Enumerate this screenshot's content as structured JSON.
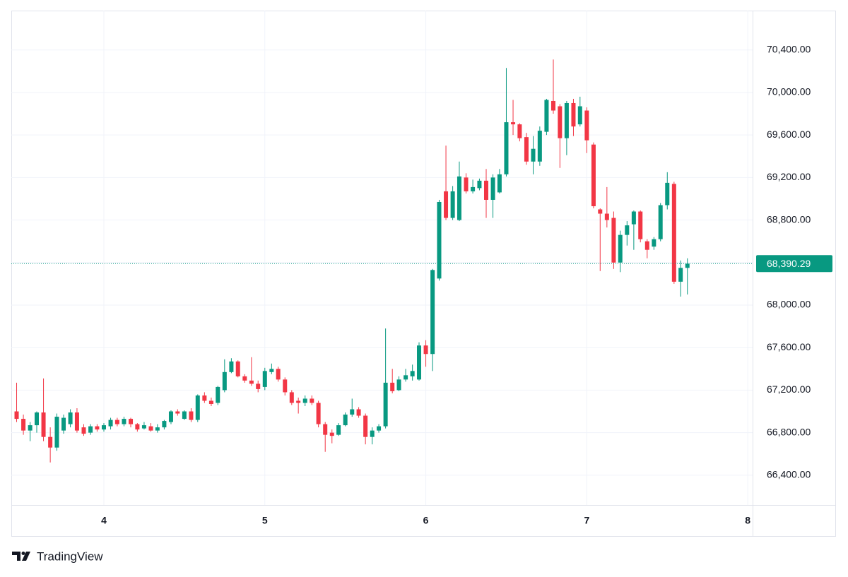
{
  "chart_data": {
    "type": "candlestick",
    "up_color": "#089981",
    "down_color": "#f23645",
    "grid": true,
    "xlim": [
      3.425,
      8.03
    ],
    "xticks": [
      4,
      5,
      6,
      7,
      8
    ],
    "ylim": [
      66120,
      70770
    ],
    "yticks": [
      {
        "value": 66400,
        "label": "66,400.00"
      },
      {
        "value": 66800,
        "label": "66,800.00"
      },
      {
        "value": 67200,
        "label": "67,200.00"
      },
      {
        "value": 67600,
        "label": "67,600.00"
      },
      {
        "value": 68000,
        "label": "68,000.00"
      },
      {
        "value": 68400,
        "label": "68,400.00"
      },
      {
        "value": 68800,
        "label": "68,800.00"
      },
      {
        "value": 69200,
        "label": "69,200.00"
      },
      {
        "value": 69600,
        "label": "69,600.00"
      },
      {
        "value": 70000,
        "label": "70,000.00"
      },
      {
        "value": 70400,
        "label": "70,400.00"
      }
    ],
    "last_price": {
      "value": 68390.29,
      "label": "68,390.29"
    },
    "watermark": "TradingView",
    "x": [
      3.458,
      3.5,
      3.542,
      3.583,
      3.625,
      3.667,
      3.708,
      3.75,
      3.792,
      3.833,
      3.875,
      3.917,
      3.958,
      4,
      4.042,
      4.083,
      4.125,
      4.167,
      4.208,
      4.25,
      4.292,
      4.333,
      4.375,
      4.417,
      4.458,
      4.5,
      4.542,
      4.583,
      4.625,
      4.667,
      4.708,
      4.75,
      4.792,
      4.833,
      4.875,
      4.917,
      4.958,
      5,
      5.042,
      5.083,
      5.125,
      5.167,
      5.208,
      5.25,
      5.292,
      5.333,
      5.375,
      5.417,
      5.458,
      5.5,
      5.542,
      5.583,
      5.625,
      5.667,
      5.708,
      5.75,
      5.792,
      5.833,
      5.875,
      5.917,
      5.958,
      6,
      6.042,
      6.083,
      6.125,
      6.167,
      6.208,
      6.25,
      6.292,
      6.333,
      6.375,
      6.417,
      6.458,
      6.5,
      6.542,
      6.583,
      6.625,
      6.667,
      6.708,
      6.75,
      6.792,
      6.833,
      6.875,
      6.917,
      6.958,
      7,
      7.042,
      7.083,
      7.125,
      7.167,
      7.208,
      7.25,
      7.292,
      7.333,
      7.375,
      7.417,
      7.458,
      7.5,
      7.542,
      7.583,
      7.625
    ],
    "open": [
      67000,
      66930,
      66820,
      66870,
      66990,
      66760,
      66660,
      66820,
      66880,
      66990,
      66850,
      66800,
      66860,
      66830,
      66860,
      66920,
      66880,
      66930,
      66880,
      66840,
      66860,
      66820,
      66850,
      66900,
      67000,
      66930,
      67000,
      66920,
      67150,
      67100,
      67080,
      67200,
      67370,
      67470,
      67330,
      67290,
      67260,
      67230,
      67370,
      67400,
      67300,
      67180,
      67100,
      67080,
      67120,
      67080,
      66880,
      66800,
      66780,
      66870,
      66970,
      67020,
      66960,
      66760,
      66820,
      66860,
      67270,
      67200,
      67300,
      67330,
      67300,
      67620,
      67540,
      68250,
      69070,
      68820,
      68800,
      69200,
      69070,
      69100,
      69170,
      68990,
      69060,
      69230,
      69720,
      69700,
      69580,
      69350,
      69350,
      69630,
      69920,
      69870,
      69570,
      69900,
      69700,
      69830,
      69510,
      68900,
      68860,
      68820,
      68400,
      68660,
      68760,
      68880,
      68600,
      68550,
      68620,
      68940,
      69140,
      68220,
      68350
    ],
    "high": [
      67270,
      66970,
      66900,
      67000,
      67310,
      66850,
      66980,
      66970,
      67020,
      67030,
      66880,
      66880,
      66880,
      66890,
      66940,
      66940,
      66950,
      66940,
      66890,
      66900,
      66890,
      66880,
      66920,
      67010,
      67020,
      67010,
      67030,
      67160,
      67180,
      67130,
      67240,
      67490,
      67500,
      67480,
      67350,
      67510,
      67290,
      67410,
      67450,
      67420,
      67320,
      67200,
      67130,
      67150,
      67150,
      67100,
      66900,
      66830,
      66890,
      66990,
      67120,
      67040,
      66980,
      66850,
      66880,
      67780,
      67400,
      67330,
      67400,
      67440,
      67650,
      67670,
      68340,
      68990,
      69500,
      69120,
      69350,
      69240,
      69180,
      69190,
      69280,
      69230,
      69280,
      70230,
      69930,
      69710,
      69620,
      69590,
      69680,
      69940,
      70310,
      69890,
      69920,
      69940,
      69960,
      69860,
      69530,
      68910,
      69110,
      68880,
      68700,
      68790,
      68890,
      68890,
      68620,
      68640,
      68960,
      69250,
      69160,
      68420,
      68440
    ],
    "low": [
      66900,
      66780,
      66720,
      66800,
      66720,
      66520,
      66630,
      66790,
      66850,
      66800,
      66770,
      66780,
      66810,
      66810,
      66830,
      66860,
      66860,
      66850,
      66810,
      66830,
      66810,
      66800,
      66830,
      66880,
      66960,
      66920,
      66900,
      66900,
      67080,
      67050,
      67060,
      67180,
      67360,
      67320,
      67270,
      67240,
      67180,
      67200,
      67350,
      67280,
      67150,
      67060,
      66980,
      67050,
      67060,
      66850,
      66620,
      66700,
      66770,
      66860,
      66950,
      66940,
      66690,
      66690,
      66800,
      66840,
      67170,
      67190,
      67280,
      67290,
      67290,
      67420,
      67380,
      68230,
      68800,
      68800,
      68790,
      69050,
      69050,
      69080,
      68820,
      68820,
      69050,
      69210,
      69600,
      69540,
      69320,
      69230,
      69310,
      69600,
      69800,
      69290,
      69410,
      69590,
      69680,
      69430,
      68910,
      68320,
      68730,
      68340,
      68310,
      68560,
      68520,
      68590,
      68440,
      68520,
      68600,
      68900,
      68200,
      68080,
      68100
    ],
    "close": [
      66930,
      66820,
      66870,
      66990,
      66760,
      66660,
      66950,
      66940,
      66990,
      66820,
      66790,
      66860,
      66830,
      66870,
      66920,
      66880,
      66930,
      66880,
      66830,
      66870,
      66820,
      66850,
      66910,
      67000,
      66980,
      67000,
      66920,
      67150,
      67100,
      67070,
      67230,
      67370,
      67470,
      67330,
      67290,
      67260,
      67210,
      67380,
      67400,
      67300,
      67180,
      67080,
      67080,
      67120,
      67080,
      66880,
      66780,
      66770,
      66870,
      66970,
      67020,
      66960,
      66760,
      66820,
      66860,
      67270,
      67190,
      67300,
      67340,
      67380,
      67620,
      67540,
      68330,
      68970,
      68820,
      69070,
      69210,
      69070,
      69110,
      69170,
      68990,
      69200,
      69230,
      69720,
      69700,
      69570,
      69350,
      69470,
      69640,
      69930,
      69830,
      69570,
      69900,
      69680,
      69870,
      69550,
      68930,
      68860,
      68800,
      68400,
      68660,
      68750,
      68880,
      68620,
      68520,
      68620,
      68940,
      69150,
      68220,
      68350,
      68390
    ]
  }
}
